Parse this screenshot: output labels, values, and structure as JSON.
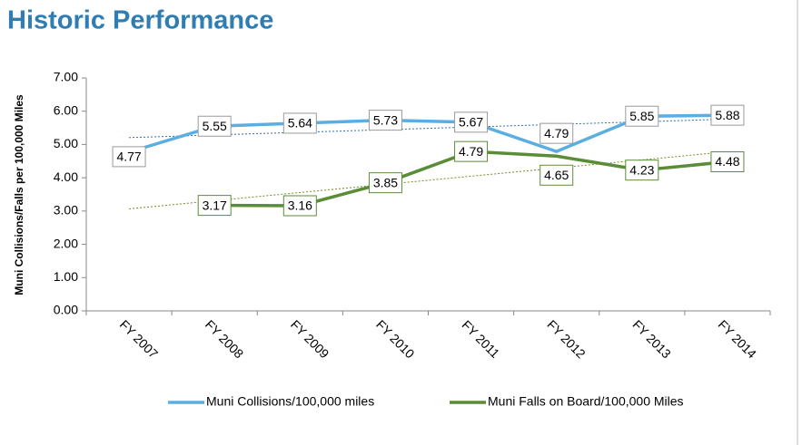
{
  "chart_data": {
    "type": "line",
    "title": "Historic Performance",
    "y_axis_label": "Muni Collisions/Falls per 100,000 Miles",
    "categories": [
      "FY 2007",
      "FY 2008",
      "FY 2009",
      "FY 2010",
      "FY 2011",
      "FY 2012",
      "FY 2013",
      "FY 2014"
    ],
    "series": [
      {
        "name": "Muni Collisions/100,000 miles",
        "color": "#5aaee2",
        "label_border": "#9a9a9a",
        "values": [
          4.77,
          5.55,
          5.64,
          5.73,
          5.67,
          4.79,
          5.85,
          5.88
        ]
      },
      {
        "name": "Muni Falls on Board/100,000 Miles",
        "color": "#5b8c38",
        "label_border": "#5b8c38",
        "values": [
          null,
          3.17,
          3.16,
          3.85,
          4.79,
          4.65,
          4.23,
          4.48
        ]
      }
    ],
    "ylim": [
      0,
      7
    ],
    "yticks": [
      {
        "value": 0,
        "label": "0.00"
      },
      {
        "value": 1,
        "label": "1.00"
      },
      {
        "value": 2,
        "label": "2.00"
      },
      {
        "value": 3,
        "label": "3.00"
      },
      {
        "value": 4,
        "label": "4.00"
      },
      {
        "value": 5,
        "label": "5.00"
      },
      {
        "value": 6,
        "label": "6.00"
      },
      {
        "value": 7,
        "label": "7.00"
      }
    ],
    "trendline": true,
    "data_labels": true,
    "legend": "bottom"
  }
}
